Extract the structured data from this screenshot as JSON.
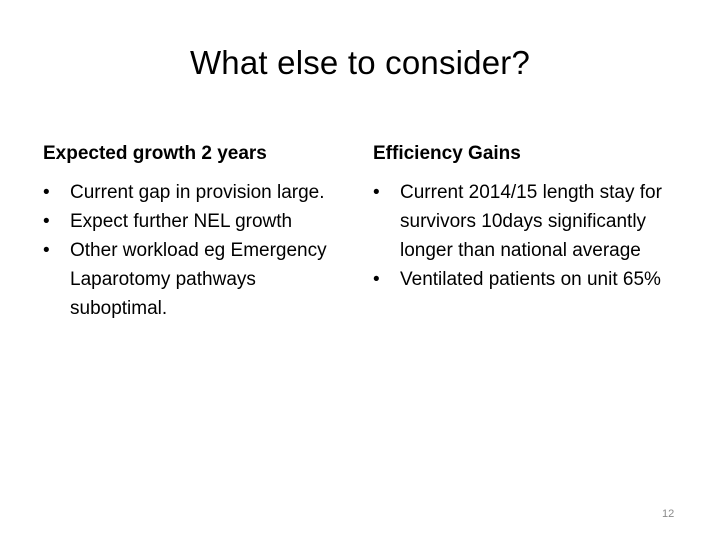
{
  "slide": {
    "title": "What else to consider?",
    "left_column": {
      "heading": "Expected growth 2 years",
      "bullets": [
        "Current gap in provision large.",
        "Expect further NEL growth",
        "Other workload eg Emergency Laparotomy pathways suboptimal."
      ]
    },
    "right_column": {
      "heading": "Efficiency Gains",
      "bullets": [
        "Current 2014/15 length stay for survivors 10days significantly longer than national average",
        "Ventilated patients on unit 65%"
      ]
    },
    "bullet_glyph": "•",
    "page_number": "12"
  }
}
